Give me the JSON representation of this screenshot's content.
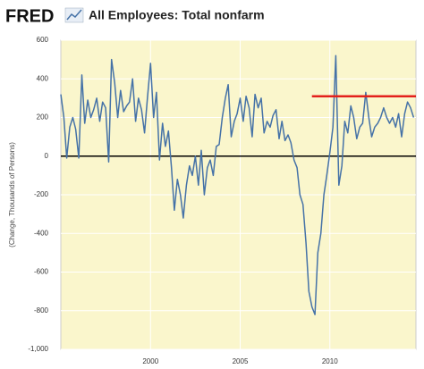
{
  "chart_data": {
    "type": "line",
    "logo": "FRED",
    "title": "All Employees: Total nonfarm",
    "y_label": "(Change, Thousands of Persons)",
    "x": [
      1995,
      1995.17,
      1995.33,
      1995.5,
      1995.67,
      1995.83,
      1996,
      1996.17,
      1996.33,
      1996.5,
      1996.67,
      1996.83,
      1997,
      1997.17,
      1997.33,
      1997.5,
      1997.67,
      1997.83,
      1998,
      1998.17,
      1998.33,
      1998.5,
      1998.67,
      1998.83,
      1999,
      1999.17,
      1999.33,
      1999.5,
      1999.67,
      1999.83,
      2000,
      2000.17,
      2000.33,
      2000.5,
      2000.67,
      2000.83,
      2001,
      2001.17,
      2001.33,
      2001.5,
      2001.67,
      2001.83,
      2002,
      2002.17,
      2002.33,
      2002.5,
      2002.67,
      2002.83,
      2003,
      2003.17,
      2003.33,
      2003.5,
      2003.67,
      2003.83,
      2004,
      2004.17,
      2004.33,
      2004.5,
      2004.67,
      2004.83,
      2005,
      2005.17,
      2005.33,
      2005.5,
      2005.67,
      2005.83,
      2006,
      2006.17,
      2006.33,
      2006.5,
      2006.67,
      2006.83,
      2007,
      2007.17,
      2007.33,
      2007.5,
      2007.67,
      2007.83,
      2008,
      2008.17,
      2008.33,
      2008.5,
      2008.67,
      2008.83,
      2009,
      2009.17,
      2009.33,
      2009.5,
      2009.67,
      2009.83,
      2010,
      2010.17,
      2010.33,
      2010.5,
      2010.67,
      2010.83,
      2011,
      2011.17,
      2011.33,
      2011.5,
      2011.67,
      2011.83,
      2012,
      2012.17,
      2012.33,
      2012.5,
      2012.67,
      2012.83,
      2013,
      2013.17,
      2013.33,
      2013.5,
      2013.67,
      2013.83,
      2014,
      2014.17,
      2014.33,
      2014.5,
      2014.67
    ],
    "series": [
      {
        "color": "#4572a7",
        "values": [
          320,
          200,
          -10,
          150,
          200,
          140,
          -10,
          420,
          170,
          290,
          200,
          240,
          300,
          180,
          280,
          250,
          -30,
          500,
          380,
          200,
          340,
          230,
          260,
          280,
          400,
          180,
          300,
          240,
          120,
          300,
          480,
          200,
          330,
          -20,
          170,
          50,
          130,
          -60,
          -280,
          -120,
          -200,
          -320,
          -150,
          -50,
          -100,
          0,
          -150,
          30,
          -200,
          -60,
          -20,
          -100,
          50,
          60,
          200,
          300,
          370,
          100,
          180,
          220,
          300,
          180,
          310,
          250,
          100,
          320,
          250,
          300,
          120,
          180,
          150,
          210,
          240,
          90,
          180,
          80,
          110,
          70,
          -20,
          -60,
          -200,
          -250,
          -450,
          -700,
          -780,
          -820,
          -500,
          -400,
          -200,
          -100,
          20,
          150,
          520,
          -150,
          -50,
          180,
          120,
          260,
          200,
          90,
          150,
          170,
          330,
          200,
          100,
          150,
          170,
          200,
          250,
          200,
          170,
          200,
          150,
          220,
          100,
          220,
          280,
          250,
          200
        ]
      }
    ],
    "xlim": [
      1995,
      2014.8
    ],
    "ylim": [
      -1000,
      600
    ],
    "xticks": [
      2000,
      2005,
      2010
    ],
    "yticks": [
      600,
      400,
      200,
      0,
      -200,
      -400,
      -600,
      -800,
      {
        "value": -1000,
        "label": "-1,000"
      }
    ],
    "grid": true,
    "background": "#faf6cc",
    "zero_line": {
      "y": 0,
      "color": "#000000"
    },
    "reference_line": {
      "y": 310,
      "x": [
        2009,
        2014.8
      ],
      "color": "#e3201b"
    }
  }
}
